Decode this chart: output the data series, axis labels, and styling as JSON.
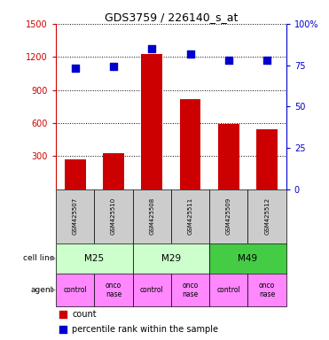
{
  "title": "GDS3759 / 226140_s_at",
  "samples": [
    "GSM425507",
    "GSM425510",
    "GSM425508",
    "GSM425511",
    "GSM425509",
    "GSM425512"
  ],
  "counts": [
    270,
    330,
    1230,
    820,
    590,
    540
  ],
  "percentiles": [
    73,
    74,
    85,
    82,
    78,
    78
  ],
  "ylim_left": [
    0,
    1500
  ],
  "ylim_right": [
    0,
    100
  ],
  "yticks_left": [
    300,
    600,
    900,
    1200,
    1500
  ],
  "yticks_right": [
    0,
    25,
    50,
    75,
    100
  ],
  "yticklabels_right": [
    "0",
    "25",
    "50",
    "75",
    "100%"
  ],
  "bar_color": "#cc0000",
  "dot_color": "#0000cc",
  "cell_lines": [
    "M25",
    "M29",
    "M49"
  ],
  "cell_line_colors": [
    "#ccffcc",
    "#ccffcc",
    "#44cc44"
  ],
  "cell_line_spans": [
    [
      0,
      2
    ],
    [
      2,
      4
    ],
    [
      4,
      6
    ]
  ],
  "agent_labels": [
    "control",
    "onconase",
    "control",
    "onconase",
    "control",
    "onconase"
  ],
  "agent_color": "#ff88ff",
  "sample_bg_color": "#cccccc",
  "left_tick_color": "#cc0000",
  "right_tick_color": "#0000cc",
  "legend_items": [
    {
      "color": "#cc0000",
      "label": "count"
    },
    {
      "color": "#0000cc",
      "label": "percentile rank within the sample"
    }
  ]
}
